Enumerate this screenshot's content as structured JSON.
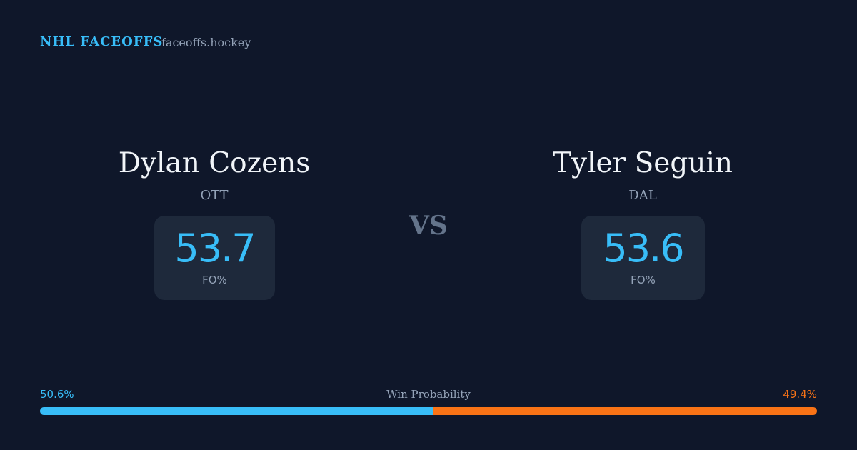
{
  "header": {
    "title": "NHL FACEOFFS",
    "site": "faceoffs.hockey"
  },
  "players": [
    {
      "name": "Dylan Cozens",
      "team": "OTT",
      "fo_pct": 53.7,
      "fo_label": "FO%"
    },
    {
      "name": "Tyler Seguin",
      "team": "DAL",
      "fo_pct": 53.6,
      "fo_label": "FO%"
    }
  ],
  "vs": "VS",
  "win_probability": {
    "label": "Win Probability",
    "values": [
      50.6,
      49.4
    ],
    "value_labels": [
      "50.6%",
      "49.4%"
    ],
    "colors": [
      "#38bdf8",
      "#f97316"
    ]
  }
}
